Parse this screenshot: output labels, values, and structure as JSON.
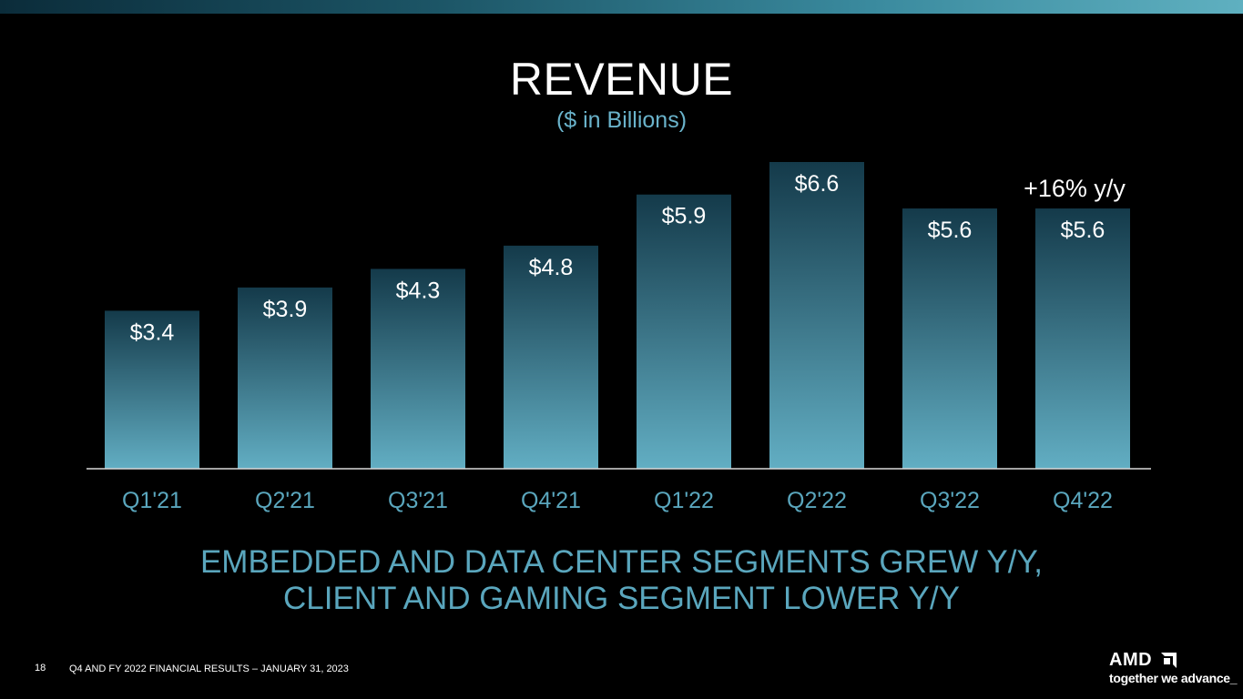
{
  "slide": {
    "title": "REVENUE",
    "subtitle": "($ in Billions)",
    "headline_line1": "EMBEDDED AND DATA CENTER SEGMENTS GREW Y/Y,",
    "headline_line2": "CLIENT AND GAMING SEGMENT LOWER Y/Y",
    "page_number": "18",
    "footer": "Q4 AND FY 2022 FINANCIAL RESULTS – JANUARY 31, 2023",
    "logo_text": "AMD",
    "tagline": "together we advance_"
  },
  "colors": {
    "bar_top": "#143a4a",
    "bar_bottom": "#62aec3",
    "accent": "#5aa6bd",
    "background": "#000000"
  },
  "chart_data": {
    "type": "bar",
    "title": "REVENUE",
    "subtitle": "($ in Billions)",
    "categories": [
      "Q1'21",
      "Q2'21",
      "Q3'21",
      "Q4'21",
      "Q1'22",
      "Q2'22",
      "Q3'22",
      "Q4'22"
    ],
    "values": [
      3.4,
      3.9,
      4.3,
      4.8,
      5.9,
      6.6,
      5.6,
      5.6
    ],
    "data_labels": [
      "$3.4",
      "$3.9",
      "$4.3",
      "$4.8",
      "$5.9",
      "$6.6",
      "$5.6",
      "$5.6"
    ],
    "annotations": [
      {
        "category": "Q4'22",
        "text": "+16% y/y"
      }
    ],
    "xlabel": "",
    "ylabel": "",
    "ylim": [
      0,
      6.6
    ],
    "grid": false,
    "legend": "none"
  }
}
